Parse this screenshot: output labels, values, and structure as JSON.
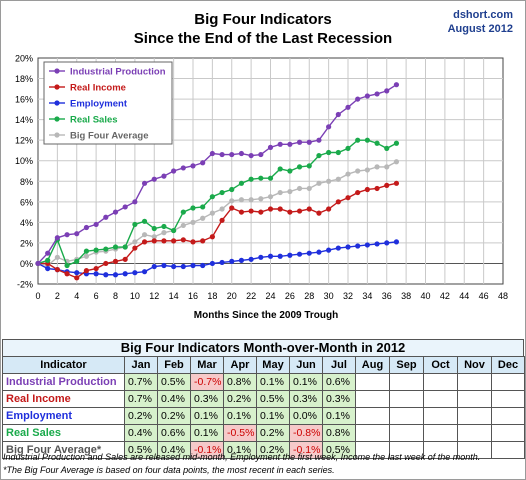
{
  "chart_data": {
    "type": "line",
    "title": "Big Four Indicators",
    "subtitle": "Since the End of the Last Recession",
    "source": "dshort.com",
    "date": "August 2012",
    "xlabel": "Months Since the 2009 Trough",
    "xlim": [
      0,
      48
    ],
    "ylim": [
      -2,
      20
    ],
    "xticks": [
      "0",
      "2",
      "4",
      "6",
      "8",
      "10",
      "12",
      "14",
      "16",
      "18",
      "20",
      "22",
      "24",
      "26",
      "28",
      "30",
      "32",
      "34",
      "36",
      "38",
      "40",
      "42",
      "44",
      "46",
      "48"
    ],
    "yticks": [
      "-2%",
      "0%",
      "2%",
      "4%",
      "6%",
      "8%",
      "10%",
      "12%",
      "14%",
      "16%",
      "18%",
      "20%"
    ],
    "grid": true,
    "legend_position": "top-left",
    "series": [
      {
        "name": "Industrial Production",
        "color": "#7b3fb5",
        "values": [
          0,
          1.0,
          2.5,
          2.8,
          2.9,
          3.5,
          3.8,
          4.5,
          5.0,
          5.5,
          6.0,
          7.8,
          8.2,
          8.5,
          9.0,
          9.3,
          9.5,
          9.8,
          10.7,
          10.6,
          10.6,
          10.7,
          10.5,
          10.6,
          11.3,
          11.6,
          11.6,
          11.8,
          11.8,
          12.0,
          13.3,
          14.5,
          15.2,
          16.0,
          16.3,
          16.5,
          16.8,
          17.4
        ]
      },
      {
        "name": "Real Income",
        "color": "#c41a1a",
        "values": [
          0,
          0.0,
          -0.6,
          -1.0,
          -1.4,
          -0.7,
          -0.5,
          0.0,
          0.2,
          0.4,
          1.5,
          2.1,
          2.2,
          2.2,
          2.2,
          2.3,
          2.1,
          2.2,
          2.6,
          4.2,
          5.4,
          5.0,
          5.1,
          5.0,
          5.3,
          5.3,
          5.0,
          5.1,
          5.3,
          4.9,
          5.3,
          6.0,
          6.4,
          6.9,
          7.2,
          7.3,
          7.6,
          7.8
        ]
      },
      {
        "name": "Employment",
        "color": "#1f2fdc",
        "values": [
          0,
          -0.5,
          -0.6,
          -0.8,
          -0.9,
          -1.0,
          -1.0,
          -1.1,
          -1.1,
          -1.0,
          -0.9,
          -0.8,
          -0.3,
          -0.2,
          -0.3,
          -0.3,
          -0.2,
          -0.2,
          0.0,
          0.1,
          0.2,
          0.3,
          0.4,
          0.6,
          0.7,
          0.7,
          0.8,
          0.9,
          1.0,
          1.1,
          1.3,
          1.5,
          1.6,
          1.7,
          1.8,
          1.9,
          2.0,
          2.1
        ]
      },
      {
        "name": "Real Sales",
        "color": "#1aaa4b",
        "values": [
          0,
          0.3,
          2.3,
          -0.2,
          0.2,
          1.2,
          1.3,
          1.4,
          1.6,
          1.6,
          3.8,
          4.1,
          3.4,
          3.6,
          3.2,
          5.0,
          5.4,
          5.5,
          6.5,
          6.9,
          7.2,
          7.8,
          8.2,
          8.3,
          8.3,
          9.2,
          9.0,
          9.4,
          9.5,
          10.5,
          10.8,
          10.8,
          11.2,
          12.0,
          12.0,
          11.7,
          11.2,
          11.7
        ]
      },
      {
        "name": "Big Four Average",
        "color": "#b8b8b8",
        "values": [
          0,
          -0.2,
          0.6,
          0.2,
          0.4,
          0.7,
          1.1,
          1.2,
          1.4,
          1.6,
          2.1,
          2.8,
          2.6,
          3.0,
          3.2,
          3.7,
          4.0,
          4.4,
          4.9,
          5.3,
          6.1,
          6.2,
          6.2,
          6.3,
          6.5,
          6.9,
          7.0,
          7.3,
          7.3,
          7.8,
          8.0,
          8.2,
          8.7,
          9.0,
          9.1,
          9.4,
          9.4,
          9.9
        ]
      }
    ]
  },
  "table": {
    "title": "Big Four Indicators Month-over-Month in 2012",
    "header": [
      "Indicator",
      "Jan",
      "Feb",
      "Mar",
      "Apr",
      "May",
      "Jun",
      "Jul",
      "Aug",
      "Sep",
      "Oct",
      "Nov",
      "Dec"
    ],
    "rows": [
      {
        "label": "Industrial Production",
        "color": "#7b3fb5",
        "values": [
          "0.7%",
          "0.5%",
          "-0.7%",
          "0.8%",
          "0.1%",
          "0.1%",
          "0.6%",
          "",
          "",
          "",
          "",
          ""
        ]
      },
      {
        "label": "Real Income",
        "color": "#c41a1a",
        "values": [
          "0.7%",
          "0.4%",
          "0.3%",
          "0.2%",
          "0.5%",
          "0.3%",
          "0.3%",
          "",
          "",
          "",
          "",
          ""
        ]
      },
      {
        "label": "Employment",
        "color": "#1f2fdc",
        "values": [
          "0.2%",
          "0.2%",
          "0.1%",
          "0.1%",
          "0.1%",
          "0.0%",
          "0.1%",
          "",
          "",
          "",
          "",
          ""
        ]
      },
      {
        "label": "Real Sales",
        "color": "#1aaa4b",
        "values": [
          "0.4%",
          "0.6%",
          "0.1%",
          "-0.5%",
          "0.2%",
          "-0.8%",
          "0.8%",
          "",
          "",
          "",
          "",
          ""
        ]
      },
      {
        "label": "Big Four Average*",
        "color": "#555555",
        "values": [
          "0.5%",
          "0.4%",
          "-0.1%",
          "0.1%",
          "0.2%",
          "-0.1%",
          "0.5%",
          "",
          "",
          "",
          "",
          ""
        ]
      }
    ]
  },
  "footnotes": {
    "line1": "Industrial Production and Sales are released mid-month, Employment the first week, Income the last week of the month.",
    "line2": "*The Big Four Average is based on four data points, the most recent in each series."
  }
}
